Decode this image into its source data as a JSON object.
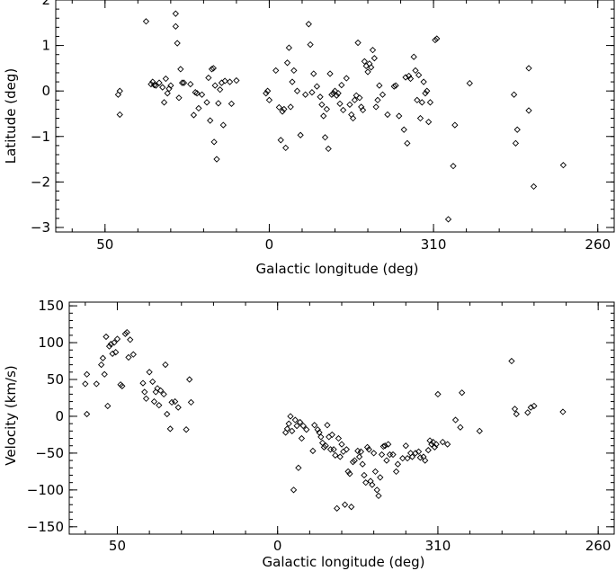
{
  "chart_data": [
    {
      "type": "scatter",
      "xlabel": "Galactic longitude (deg)",
      "ylabel": "Latitude (deg)",
      "xlim": [
        65,
        255
      ],
      "ylim": [
        -3.1,
        2.0
      ],
      "x_direction": "decreasing",
      "x_tick_values": [
        50,
        0,
        310,
        260
      ],
      "x_tick_labels": [
        "50",
        "0",
        "310",
        "260"
      ],
      "y_tick_values": [
        2,
        1,
        0,
        -1,
        -2,
        -3
      ],
      "y_tick_labels": [
        "2",
        "1",
        "0",
        "−1",
        "−2",
        "−3"
      ],
      "grid": false,
      "marker": "diamond",
      "points": [
        [
          46,
          -0.08
        ],
        [
          45.5,
          0.0
        ],
        [
          45.5,
          -0.52
        ],
        [
          37.5,
          1.53
        ],
        [
          36,
          0.15
        ],
        [
          35.5,
          0.2
        ],
        [
          35,
          0.13
        ],
        [
          34.5,
          0.12
        ],
        [
          33.5,
          0.18
        ],
        [
          32.5,
          0.08
        ],
        [
          32,
          -0.25
        ],
        [
          31.5,
          0.27
        ],
        [
          31,
          -0.05
        ],
        [
          30.5,
          0.05
        ],
        [
          30,
          0.12
        ],
        [
          28.5,
          1.7
        ],
        [
          28.5,
          1.42
        ],
        [
          28,
          1.05
        ],
        [
          27.5,
          -0.15
        ],
        [
          27,
          0.48
        ],
        [
          26.5,
          0.18
        ],
        [
          26,
          0.18
        ],
        [
          24,
          0.15
        ],
        [
          23,
          -0.53
        ],
        [
          22.5,
          -0.03
        ],
        [
          22,
          -0.05
        ],
        [
          21.5,
          -0.38
        ],
        [
          20.5,
          -0.08
        ],
        [
          19,
          -0.25
        ],
        [
          18.5,
          0.29
        ],
        [
          18,
          -0.65
        ],
        [
          17.5,
          0.48
        ],
        [
          17,
          0.5
        ],
        [
          16.8,
          -1.12
        ],
        [
          16.5,
          0.12
        ],
        [
          16,
          -1.5
        ],
        [
          15.5,
          -0.27
        ],
        [
          15,
          0.03
        ],
        [
          14.5,
          0.18
        ],
        [
          14,
          -0.75
        ],
        [
          13.5,
          0.22
        ],
        [
          12,
          0.2
        ],
        [
          11.5,
          -0.28
        ],
        [
          10,
          0.23
        ],
        [
          1,
          -0.05
        ],
        [
          0.5,
          0.0
        ],
        [
          0,
          -0.2
        ],
        [
          358,
          0.45
        ],
        [
          357,
          -0.36
        ],
        [
          356.5,
          -1.08
        ],
        [
          356,
          -0.45
        ],
        [
          355.5,
          -0.4
        ],
        [
          355,
          -1.25
        ],
        [
          354.5,
          0.62
        ],
        [
          354,
          0.95
        ],
        [
          353.5,
          -0.35
        ],
        [
          353,
          0.2
        ],
        [
          352.5,
          0.45
        ],
        [
          351.5,
          0.0
        ],
        [
          350.5,
          -0.97
        ],
        [
          349,
          -0.08
        ],
        [
          348,
          1.47
        ],
        [
          347.5,
          1.02
        ],
        [
          347,
          -0.03
        ],
        [
          346.5,
          0.38
        ],
        [
          345.5,
          0.1
        ],
        [
          344.5,
          -0.13
        ],
        [
          344,
          -0.3
        ],
        [
          343.5,
          -0.55
        ],
        [
          343,
          -1.02
        ],
        [
          342.5,
          -0.4
        ],
        [
          342,
          -1.27
        ],
        [
          341.5,
          0.38
        ],
        [
          341,
          -0.08
        ],
        [
          340.5,
          -0.05
        ],
        [
          340,
          0.0
        ],
        [
          339.5,
          -0.1
        ],
        [
          339,
          -0.05
        ],
        [
          338.5,
          -0.28
        ],
        [
          338,
          0.13
        ],
        [
          337.5,
          -0.42
        ],
        [
          336.5,
          0.28
        ],
        [
          335.5,
          -0.3
        ],
        [
          335,
          -0.52
        ],
        [
          334.5,
          -0.6
        ],
        [
          334,
          -0.2
        ],
        [
          333.5,
          -0.1
        ],
        [
          333,
          1.06
        ],
        [
          332.5,
          -0.15
        ],
        [
          332,
          -0.35
        ],
        [
          331.5,
          -0.42
        ],
        [
          331,
          0.65
        ],
        [
          330.5,
          0.55
        ],
        [
          330,
          0.42
        ],
        [
          329.5,
          0.6
        ],
        [
          329,
          0.52
        ],
        [
          328.5,
          0.9
        ],
        [
          328,
          0.72
        ],
        [
          327.5,
          -0.35
        ],
        [
          327,
          -0.2
        ],
        [
          326.5,
          0.12
        ],
        [
          325.5,
          -0.08
        ],
        [
          324,
          -0.52
        ],
        [
          322,
          0.1
        ],
        [
          321.5,
          0.12
        ],
        [
          320.5,
          -0.55
        ],
        [
          319,
          -0.85
        ],
        [
          318.5,
          0.3
        ],
        [
          318,
          -1.15
        ],
        [
          317.5,
          0.33
        ],
        [
          317,
          0.27
        ],
        [
          316,
          0.75
        ],
        [
          315.5,
          0.45
        ],
        [
          315,
          -0.2
        ],
        [
          314.5,
          0.35
        ],
        [
          314,
          -0.6
        ],
        [
          313.5,
          -0.25
        ],
        [
          313,
          0.2
        ],
        [
          312.5,
          -0.05
        ],
        [
          312,
          0.0
        ],
        [
          311.5,
          -0.68
        ],
        [
          311,
          -0.25
        ],
        [
          309.5,
          1.12
        ],
        [
          309,
          1.15
        ],
        [
          305.5,
          -2.82
        ],
        [
          304,
          -1.65
        ],
        [
          303.5,
          -0.75
        ],
        [
          299,
          0.17
        ],
        [
          285.5,
          -0.08
        ],
        [
          285,
          -1.15
        ],
        [
          284.5,
          -0.85
        ],
        [
          281,
          0.5
        ],
        [
          281,
          -0.43
        ],
        [
          279.5,
          -2.1
        ],
        [
          270.5,
          -1.63
        ]
      ]
    },
    {
      "type": "scatter",
      "xlabel": "Galactic longitude (deg)",
      "ylabel": "Velocity (km/s)",
      "xlim": [
        65,
        255
      ],
      "ylim": [
        -160,
        155
      ],
      "x_direction": "decreasing",
      "x_tick_values": [
        50,
        0,
        310,
        260
      ],
      "x_tick_labels": [
        "50",
        "0",
        "310",
        "260"
      ],
      "y_tick_values": [
        150,
        100,
        50,
        0,
        -50,
        -100,
        -150
      ],
      "y_tick_labels": [
        "150",
        "100",
        "50",
        "0",
        "−50",
        "−100",
        "−150"
      ],
      "grid": false,
      "marker": "diamond",
      "points": [
        [
          60,
          44
        ],
        [
          59.5,
          57
        ],
        [
          59.5,
          3
        ],
        [
          56.5,
          44
        ],
        [
          55,
          70
        ],
        [
          54.5,
          79
        ],
        [
          54,
          57
        ],
        [
          53.5,
          108
        ],
        [
          53,
          14
        ],
        [
          52.5,
          95
        ],
        [
          52,
          98
        ],
        [
          51.5,
          85
        ],
        [
          51,
          100
        ],
        [
          50.5,
          87
        ],
        [
          50,
          105
        ],
        [
          49,
          43
        ],
        [
          48.5,
          41
        ],
        [
          47.5,
          112
        ],
        [
          47,
          114
        ],
        [
          46.5,
          80
        ],
        [
          46,
          104
        ],
        [
          45,
          84
        ],
        [
          42,
          45
        ],
        [
          41.5,
          33
        ],
        [
          41,
          24
        ],
        [
          40,
          60
        ],
        [
          39,
          47
        ],
        [
          38.5,
          20
        ],
        [
          38,
          33
        ],
        [
          37.5,
          38
        ],
        [
          37,
          15
        ],
        [
          36.5,
          35
        ],
        [
          35.5,
          30
        ],
        [
          35,
          70
        ],
        [
          34.5,
          3
        ],
        [
          33.5,
          -17
        ],
        [
          33,
          19
        ],
        [
          32,
          20
        ],
        [
          31,
          12
        ],
        [
          28.5,
          -18
        ],
        [
          27.5,
          50
        ],
        [
          27,
          19
        ],
        [
          357.5,
          -22
        ],
        [
          357,
          -17
        ],
        [
          356.5,
          -10
        ],
        [
          356,
          0
        ],
        [
          355.5,
          -20
        ],
        [
          355,
          -100
        ],
        [
          354.5,
          -5
        ],
        [
          354,
          -13
        ],
        [
          353.5,
          -70
        ],
        [
          353,
          -8
        ],
        [
          352.5,
          -30
        ],
        [
          352,
          -13
        ],
        [
          351,
          -18
        ],
        [
          349,
          -47
        ],
        [
          348.5,
          -12
        ],
        [
          347.5,
          -18
        ],
        [
          347,
          -22
        ],
        [
          346.5,
          -28
        ],
        [
          346,
          -36
        ],
        [
          345.5,
          -42
        ],
        [
          345,
          -40
        ],
        [
          344.5,
          -12
        ],
        [
          344,
          -28
        ],
        [
          343.5,
          -45
        ],
        [
          343,
          -25
        ],
        [
          342.5,
          -45
        ],
        [
          342,
          -53
        ],
        [
          341.5,
          -125
        ],
        [
          341,
          -30
        ],
        [
          340.5,
          -55
        ],
        [
          340,
          -38
        ],
        [
          339.5,
          -48
        ],
        [
          339,
          -120
        ],
        [
          338.5,
          -45
        ],
        [
          338,
          -75
        ],
        [
          337.5,
          -78
        ],
        [
          337,
          -123
        ],
        [
          336.5,
          -62
        ],
        [
          336,
          -60
        ],
        [
          335,
          -47
        ],
        [
          334.5,
          -55
        ],
        [
          334,
          -48
        ],
        [
          333.5,
          -65
        ],
        [
          333,
          -80
        ],
        [
          332.5,
          -90
        ],
        [
          332,
          -42
        ],
        [
          331.5,
          -45
        ],
        [
          331,
          -88
        ],
        [
          330.5,
          -93
        ],
        [
          330,
          -50
        ],
        [
          329.5,
          -75
        ],
        [
          329,
          -100
        ],
        [
          328.5,
          -108
        ],
        [
          328,
          -83
        ],
        [
          327.5,
          -52
        ],
        [
          327,
          -41
        ],
        [
          326.5,
          -40
        ],
        [
          326,
          -60
        ],
        [
          325.5,
          -38
        ],
        [
          325,
          -52
        ],
        [
          324,
          -52
        ],
        [
          323,
          -75
        ],
        [
          322.5,
          -65
        ],
        [
          321,
          -57
        ],
        [
          320,
          -40
        ],
        [
          319.5,
          -57
        ],
        [
          318.5,
          -50
        ],
        [
          318,
          -55
        ],
        [
          317,
          -50
        ],
        [
          316,
          -48
        ],
        [
          315.5,
          -56
        ],
        [
          314.5,
          -55
        ],
        [
          314,
          -60
        ],
        [
          313,
          -46
        ],
        [
          312.5,
          -33
        ],
        [
          312,
          -38
        ],
        [
          311.5,
          -35
        ],
        [
          311,
          -42
        ],
        [
          310.5,
          -38
        ],
        [
          310,
          30
        ],
        [
          308.5,
          -35
        ],
        [
          307,
          -38
        ],
        [
          304.5,
          -5
        ],
        [
          303,
          -15
        ],
        [
          302.5,
          32
        ],
        [
          297,
          -20
        ],
        [
          287,
          75
        ],
        [
          286,
          10
        ],
        [
          285.5,
          3
        ],
        [
          282,
          5
        ],
        [
          281,
          12
        ],
        [
          280,
          14
        ],
        [
          271,
          6
        ]
      ]
    }
  ]
}
